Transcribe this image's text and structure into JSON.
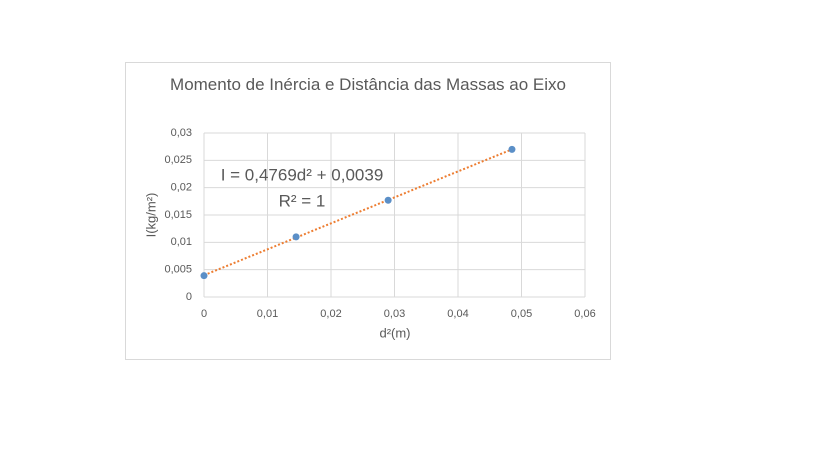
{
  "chart_data": {
    "type": "scatter",
    "title": "Momento de Inércia e Distância das Massas ao Eixo",
    "x_label": "d²(m)",
    "y_label": "I(kg/m²)",
    "series": [
      {
        "name": "I",
        "color": "#5b8fc7",
        "x": [
          0,
          0.0145,
          0.029,
          0.0485
        ],
        "values": [
          0.0039,
          0.011,
          0.0177,
          0.027
        ]
      }
    ],
    "trendline": {
      "type": "linear",
      "color": "#ed7d31",
      "equation": "I = 0,4769d² + 0,0039",
      "r_squared": "R² = 1"
    },
    "xlim": [
      0,
      0.06
    ],
    "xticks": [
      0,
      {
        "value": 0.01,
        "label": "0,01"
      },
      {
        "value": 0.02,
        "label": "0,02"
      },
      {
        "value": 0.03,
        "label": "0,03"
      },
      {
        "value": 0.04,
        "label": "0,04"
      },
      {
        "value": 0.05,
        "label": "0,05"
      },
      {
        "value": 0.06,
        "label": "0,06"
      }
    ],
    "ylim": [
      0,
      0.03
    ],
    "yticks": [
      0,
      {
        "value": 0.005,
        "label": "0,005"
      },
      {
        "value": 0.01,
        "label": "0,01"
      },
      {
        "value": 0.015,
        "label": "0,015"
      },
      {
        "value": 0.02,
        "label": "0,02"
      },
      {
        "value": 0.025,
        "label": "0,025"
      },
      {
        "value": 0.03,
        "label": "0,03"
      }
    ],
    "grid": true
  }
}
